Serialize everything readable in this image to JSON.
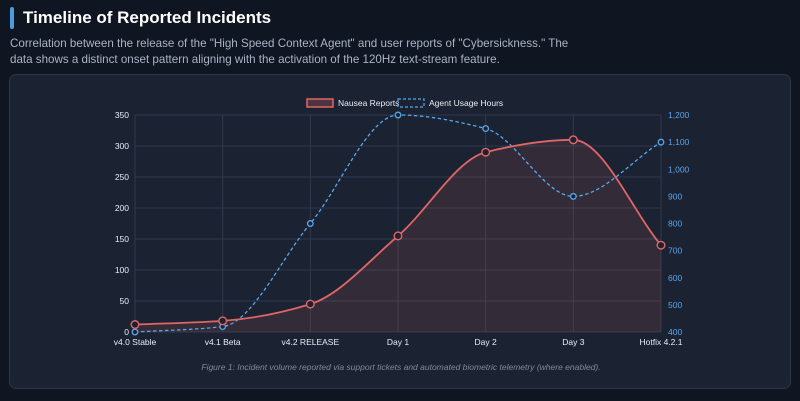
{
  "header": {
    "title": "Timeline of Reported Incidents",
    "subtitle": "Correlation between the release of the \"High Speed Context Agent\" and user reports of \"Cybersickness.\" The data shows a distinct onset pattern aligning with the activation of the 120Hz text-stream feature."
  },
  "caption": "Figure 1: Incident volume reported via support tickets and automated biometric telemetry (where enabled).",
  "colors": {
    "nausea": "#e06666",
    "usage": "#58a6ec",
    "background": "#0f1521",
    "card": "#1b2333",
    "grid": "#2f3a4c"
  },
  "chart_data": {
    "type": "line",
    "categories": [
      "v4.0 Stable",
      "v4.1 Beta",
      "v4.2 RELEASE",
      "Day 1",
      "Day 2",
      "Day 3",
      "Hotfix 4.2.1"
    ],
    "series": [
      {
        "name": "Nausea Reports",
        "axis": "left",
        "style": "solid-filled",
        "values": [
          12,
          18,
          45,
          155,
          290,
          310,
          140
        ]
      },
      {
        "name": "Agent Usage Hours",
        "axis": "right",
        "style": "dashed",
        "values": [
          400,
          420,
          800,
          1200,
          1150,
          900,
          1100
        ]
      }
    ],
    "y_left": {
      "min": 0,
      "max": 350,
      "ticks": [
        0,
        50,
        100,
        150,
        200,
        250,
        300,
        350
      ]
    },
    "y_right": {
      "min": 400,
      "max": 1200,
      "ticks": [
        "400",
        "500",
        "600",
        "700",
        "800",
        "900",
        "1,000",
        "1,100",
        "1,200"
      ]
    },
    "legend": {
      "position": "top-center"
    },
    "grid": true
  }
}
